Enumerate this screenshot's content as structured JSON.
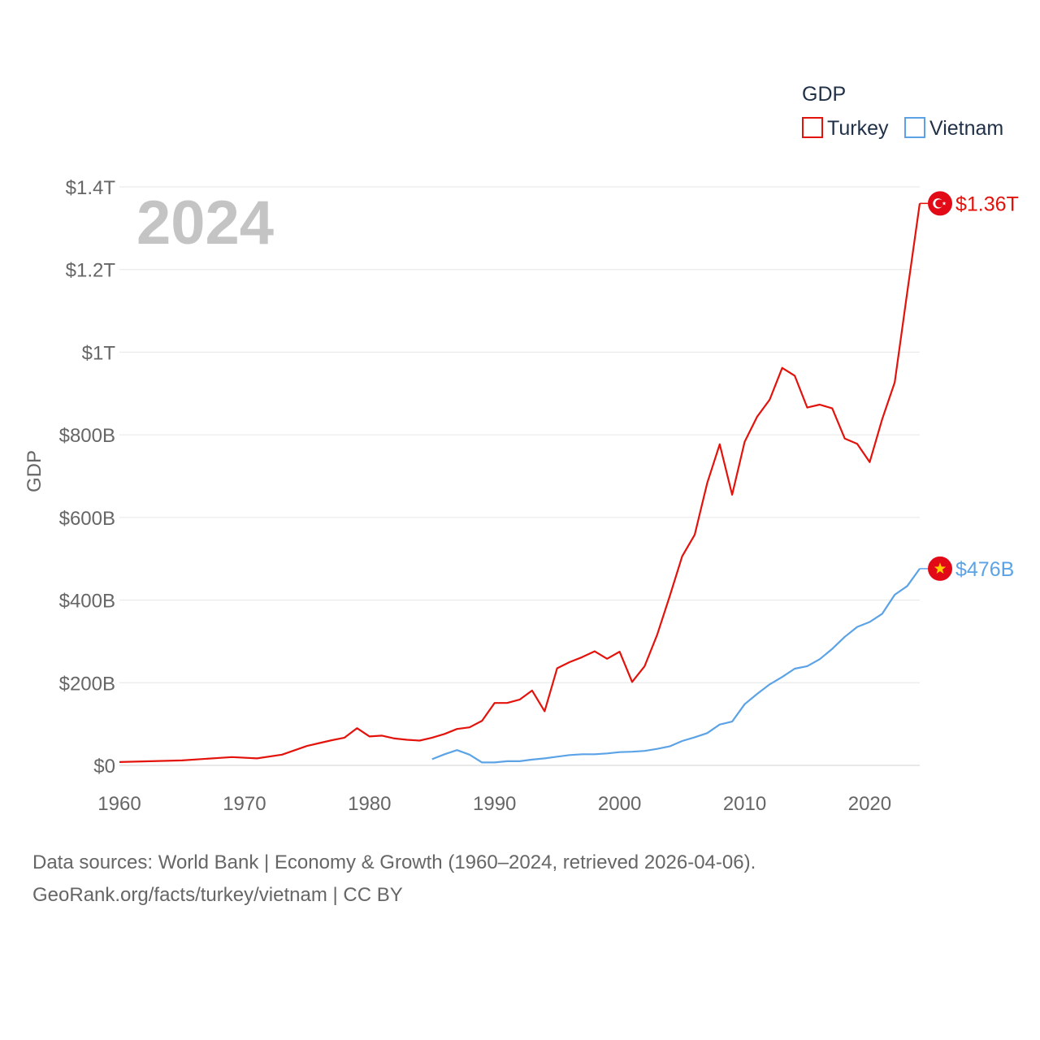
{
  "chart_data": {
    "type": "line",
    "ylabel": "GDP",
    "xlabel": "",
    "year_label": "2024",
    "xlim": [
      1960,
      2024
    ],
    "ylim": [
      0,
      1400
    ],
    "y_unit": "billion USD",
    "x_ticks": [
      1960,
      1970,
      1980,
      1990,
      2000,
      2010,
      2020
    ],
    "y_ticks": [
      {
        "value": 0,
        "label": "$0"
      },
      {
        "value": 200,
        "label": "$200B"
      },
      {
        "value": 400,
        "label": "$400B"
      },
      {
        "value": 600,
        "label": "$600B"
      },
      {
        "value": 800,
        "label": "$800B"
      },
      {
        "value": 1000,
        "label": "$1T"
      },
      {
        "value": 1200,
        "label": "$1.2T"
      },
      {
        "value": 1400,
        "label": "$1.4T"
      }
    ],
    "legend": {
      "title": "GDP",
      "position": "top-right"
    },
    "series": [
      {
        "name": "Turkey",
        "color": "#e3120b",
        "end_label": "$1.36T",
        "flag": "turkey-flag",
        "points": [
          [
            1960,
            8
          ],
          [
            1965,
            12
          ],
          [
            1969,
            20
          ],
          [
            1971,
            17
          ],
          [
            1973,
            26
          ],
          [
            1975,
            47
          ],
          [
            1976,
            54
          ],
          [
            1977,
            61
          ],
          [
            1978,
            67
          ],
          [
            1979,
            90
          ],
          [
            1980,
            70
          ],
          [
            1981,
            72
          ],
          [
            1982,
            65
          ],
          [
            1983,
            62
          ],
          [
            1984,
            60
          ],
          [
            1985,
            67
          ],
          [
            1986,
            76
          ],
          [
            1987,
            88
          ],
          [
            1988,
            92
          ],
          [
            1989,
            108
          ],
          [
            1990,
            151
          ],
          [
            1991,
            151
          ],
          [
            1992,
            159
          ],
          [
            1993,
            181
          ],
          [
            1994,
            131
          ],
          [
            1995,
            235
          ],
          [
            1996,
            250
          ],
          [
            1997,
            262
          ],
          [
            1998,
            276
          ],
          [
            1999,
            258
          ],
          [
            2000,
            275
          ],
          [
            2001,
            202
          ],
          [
            2002,
            240
          ],
          [
            2003,
            316
          ],
          [
            2004,
            409
          ],
          [
            2005,
            506
          ],
          [
            2006,
            558
          ],
          [
            2007,
            683
          ],
          [
            2008,
            777
          ],
          [
            2009,
            655
          ],
          [
            2010,
            783
          ],
          [
            2011,
            844
          ],
          [
            2012,
            885
          ],
          [
            2013,
            962
          ],
          [
            2014,
            943
          ],
          [
            2015,
            866
          ],
          [
            2016,
            873
          ],
          [
            2017,
            864
          ],
          [
            2018,
            791
          ],
          [
            2019,
            778
          ],
          [
            2020,
            734
          ],
          [
            2021,
            838
          ],
          [
            2022,
            927
          ],
          [
            2023,
            1145
          ],
          [
            2024,
            1360
          ]
        ]
      },
      {
        "name": "Vietnam",
        "color": "#5ba3e6",
        "end_label": "$476B",
        "flag": "vietnam-flag",
        "points": [
          [
            1985,
            15
          ],
          [
            1986,
            27
          ],
          [
            1987,
            37
          ],
          [
            1988,
            26
          ],
          [
            1989,
            7
          ],
          [
            1990,
            7
          ],
          [
            1991,
            10
          ],
          [
            1992,
            10
          ],
          [
            1993,
            14
          ],
          [
            1994,
            17
          ],
          [
            1995,
            21
          ],
          [
            1996,
            25
          ],
          [
            1997,
            27
          ],
          [
            1998,
            27
          ],
          [
            1999,
            29
          ],
          [
            2000,
            32
          ],
          [
            2001,
            33
          ],
          [
            2002,
            35
          ],
          [
            2003,
            40
          ],
          [
            2004,
            46
          ],
          [
            2005,
            59
          ],
          [
            2006,
            68
          ],
          [
            2007,
            78
          ],
          [
            2008,
            99
          ],
          [
            2009,
            106
          ],
          [
            2010,
            148
          ],
          [
            2011,
            173
          ],
          [
            2012,
            196
          ],
          [
            2013,
            214
          ],
          [
            2014,
            234
          ],
          [
            2015,
            240
          ],
          [
            2016,
            257
          ],
          [
            2017,
            282
          ],
          [
            2018,
            311
          ],
          [
            2019,
            335
          ],
          [
            2020,
            347
          ],
          [
            2021,
            367
          ],
          [
            2022,
            413
          ],
          [
            2023,
            434
          ],
          [
            2024,
            476
          ]
        ]
      }
    ]
  },
  "source": {
    "line1": "Data sources: World Bank | Economy & Growth (1960–2024, retrieved 2026-04-06).",
    "line2": "GeoRank.org/facts/turkey/vietnam | CC BY"
  }
}
